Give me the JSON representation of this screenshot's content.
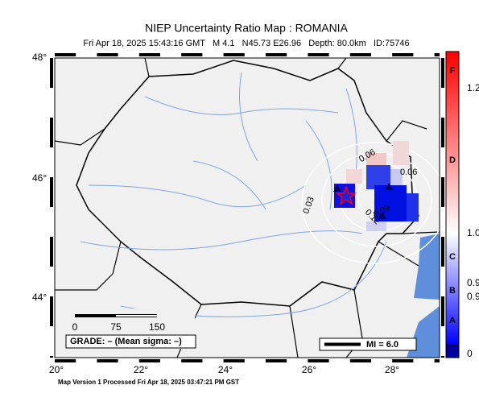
{
  "header": {
    "title": "NIEP Uncertainty Ratio Map : ROMANIA",
    "subtitle": "Fri Apr 18, 2025 15:43:16 GMT   M 4.1   N45.73 E26.96   Depth: 80.0km   ID:75746"
  },
  "map": {
    "lat_labels": [
      "48°",
      "46°",
      "44°"
    ],
    "lon_labels": [
      "20°",
      "22°",
      "24°",
      "26°",
      "28°"
    ],
    "contour_labels": [
      "0.06",
      "0.06",
      "0.03",
      "0.12",
      "0.09"
    ],
    "scale_labels": [
      "0",
      "75",
      "150"
    ],
    "grade": "GRADE: – (Mean sigma: –)",
    "mi": "MI = 6.0"
  },
  "colorbar": {
    "grades": [
      "F",
      "D",
      "C",
      "B",
      "A"
    ],
    "labels": [
      "1.2",
      "1.0",
      "0.9",
      "0.9",
      "0"
    ]
  },
  "footer": "Map Version 1 Processed Fri Apr 18, 2025 03:47:21 PM GST"
}
